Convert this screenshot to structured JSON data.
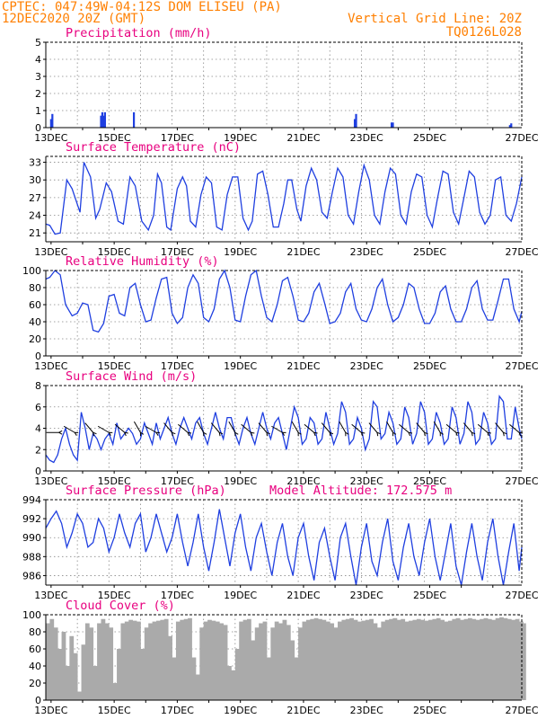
{
  "header": {
    "line1_left": "CPTEC:  047:49W-04:12S  DOM ELISEU (PA)",
    "line2_left": "12DEC2020 20Z (GMT)",
    "line1_right": "Vertical Grid Line: 20Z",
    "line2_right": "TQ0126L028"
  },
  "colors": {
    "header": "#ff7f00",
    "title": "#e8007f",
    "series": "#1f3fe0",
    "cloud": "#aaaaaa",
    "grid": "#888888"
  },
  "x_labels": [
    "13DEC",
    "15DEC",
    "17DEC",
    "19DEC",
    "21DEC",
    "23DEC",
    "25DEC",
    "27DEC"
  ],
  "chart_data": [
    {
      "type": "bar",
      "title": "Precipitation (mm/h)",
      "ylim": [
        0,
        5
      ],
      "yticks": [
        0,
        1,
        2,
        3,
        4,
        5
      ],
      "grid": true,
      "x_unit": "hours since 12DEC2020 20Z",
      "x": [
        4,
        5,
        42,
        43,
        44,
        45,
        67,
        235,
        236,
        263,
        264,
        353,
        354
      ],
      "values": [
        0.5,
        0.8,
        0.7,
        0.9,
        0.7,
        0.9,
        0.9,
        0.5,
        0.8,
        0.3,
        0.3,
        0.15,
        0.25
      ]
    },
    {
      "type": "line",
      "title": "Surface Temperature (nC)",
      "ylim": [
        19.5,
        34
      ],
      "yticks": [
        21,
        24,
        27,
        30,
        33
      ],
      "grid": true,
      "x_unit": "hours since 12DEC2020 20Z",
      "x": [
        0,
        3,
        7,
        11,
        16,
        20,
        26,
        29,
        34,
        38,
        41,
        46,
        50,
        55,
        59,
        64,
        68,
        73,
        78,
        82,
        85,
        88,
        92,
        95,
        100,
        104,
        107,
        110,
        114,
        118,
        122,
        126,
        130,
        134,
        138,
        142,
        146,
        150,
        154,
        157,
        161,
        165,
        169,
        173,
        177,
        181,
        184,
        187,
        191,
        194,
        198,
        202,
        206,
        210,
        214,
        218,
        222,
        226,
        230,
        234,
        238,
        242,
        246,
        250,
        254,
        258,
        262,
        266,
        270,
        274,
        278,
        282,
        286,
        290,
        294,
        298,
        302,
        306,
        310,
        314,
        318,
        322,
        326,
        330,
        334,
        338,
        342,
        346,
        350,
        354,
        358,
        362
      ],
      "values": [
        22.5,
        22.3,
        20.8,
        21.0,
        30.0,
        28.5,
        24.5,
        33.0,
        30.5,
        23.5,
        25.0,
        29.5,
        28.0,
        23.0,
        22.5,
        30.5,
        29.0,
        23.0,
        21.5,
        24.0,
        31.0,
        29.5,
        22.0,
        21.5,
        28.5,
        30.5,
        29.0,
        23.0,
        22.0,
        27.5,
        30.5,
        29.5,
        22.0,
        21.5,
        27.5,
        30.5,
        30.5,
        23.5,
        21.5,
        23.0,
        31.0,
        31.5,
        27.5,
        22.0,
        22.0,
        26.0,
        30.0,
        30.0,
        25.0,
        23.0,
        29.0,
        32.0,
        30.0,
        24.5,
        23.5,
        28.0,
        32.0,
        30.5,
        24.0,
        22.5,
        28.0,
        32.5,
        30.0,
        24.0,
        22.5,
        28.0,
        32.0,
        31.0,
        24.0,
        22.5,
        28.0,
        31.0,
        30.5,
        24.0,
        22.0,
        27.0,
        31.5,
        31.0,
        24.5,
        22.5,
        27.0,
        31.5,
        30.5,
        24.5,
        22.5,
        24.0,
        30.0,
        30.5,
        24.0,
        23.0,
        26.0,
        30.5
      ]
    },
    {
      "type": "line",
      "title": "Relative Humidity (%)",
      "ylim": [
        0,
        100
      ],
      "yticks": [
        0,
        20,
        40,
        60,
        80,
        100
      ],
      "grid": true,
      "x_unit": "hours since 12DEC2020 20Z",
      "x": [
        0,
        3,
        7,
        11,
        15,
        20,
        24,
        28,
        32,
        36,
        40,
        44,
        48,
        52,
        56,
        60,
        64,
        68,
        72,
        76,
        80,
        84,
        88,
        92,
        96,
        100,
        104,
        108,
        112,
        116,
        120,
        124,
        128,
        132,
        136,
        140,
        144,
        148,
        152,
        156,
        160,
        164,
        168,
        172,
        176,
        180,
        184,
        188,
        192,
        196,
        200,
        204,
        208,
        212,
        216,
        220,
        224,
        228,
        232,
        236,
        240,
        244,
        248,
        252,
        256,
        260,
        264,
        268,
        272,
        276,
        280,
        284,
        288,
        292,
        296,
        300,
        304,
        308,
        312,
        316,
        320,
        324,
        328,
        332,
        336,
        340,
        344,
        348,
        352,
        356,
        360,
        362
      ],
      "values": [
        90,
        92,
        100,
        95,
        60,
        47,
        50,
        62,
        60,
        30,
        28,
        38,
        70,
        72,
        50,
        47,
        80,
        85,
        60,
        40,
        42,
        68,
        90,
        92,
        50,
        38,
        45,
        80,
        95,
        85,
        45,
        40,
        55,
        90,
        100,
        80,
        42,
        40,
        70,
        95,
        100,
        70,
        45,
        40,
        60,
        88,
        92,
        70,
        42,
        40,
        50,
        75,
        85,
        62,
        38,
        40,
        50,
        75,
        85,
        55,
        42,
        40,
        55,
        80,
        90,
        60,
        40,
        45,
        60,
        85,
        80,
        55,
        38,
        38,
        50,
        75,
        82,
        55,
        40,
        40,
        55,
        80,
        88,
        55,
        42,
        42,
        65,
        90,
        90,
        55,
        40,
        52
      ]
    },
    {
      "type": "line",
      "title": "Surface Wind (m/s)",
      "ylim": [
        0,
        8
      ],
      "yticks": [
        0,
        2,
        4,
        6,
        8
      ],
      "grid": true,
      "x_unit": "hours since 12DEC2020 20Z",
      "x": [
        0,
        3,
        6,
        9,
        12,
        15,
        18,
        21,
        24,
        27,
        30,
        33,
        36,
        39,
        42,
        45,
        48,
        51,
        54,
        57,
        60,
        63,
        66,
        69,
        72,
        75,
        78,
        81,
        84,
        87,
        90,
        93,
        96,
        99,
        102,
        105,
        108,
        111,
        114,
        117,
        120,
        123,
        126,
        129,
        132,
        135,
        138,
        141,
        144,
        147,
        150,
        153,
        156,
        159,
        162,
        165,
        168,
        171,
        174,
        177,
        180,
        183,
        186,
        189,
        192,
        195,
        198,
        201,
        204,
        207,
        210,
        213,
        216,
        219,
        222,
        225,
        228,
        231,
        234,
        237,
        240,
        243,
        246,
        249,
        252,
        255,
        258,
        261,
        264,
        267,
        270,
        273,
        276,
        279,
        282,
        285,
        288,
        291,
        294,
        297,
        300,
        303,
        306,
        309,
        312,
        315,
        318,
        321,
        324,
        327,
        330,
        333,
        336,
        339,
        342,
        345,
        348,
        351,
        354,
        357,
        360,
        362
      ],
      "values": [
        1.5,
        1.0,
        0.8,
        1.5,
        3.0,
        4.0,
        2.5,
        1.5,
        1.0,
        5.5,
        4.0,
        2.0,
        3.5,
        3.0,
        2.0,
        3.0,
        3.5,
        2.5,
        4.5,
        3.0,
        3.5,
        4.0,
        3.5,
        2.5,
        3.0,
        4.5,
        3.5,
        2.5,
        4.5,
        3.0,
        4.0,
        5.0,
        3.5,
        2.5,
        4.0,
        5.0,
        4.0,
        3.0,
        4.5,
        5.0,
        3.5,
        2.5,
        4.0,
        5.5,
        4.0,
        3.0,
        5.0,
        5.0,
        3.5,
        2.5,
        4.0,
        5.0,
        3.5,
        2.5,
        4.0,
        5.5,
        4.0,
        3.0,
        4.5,
        5.0,
        3.5,
        2.0,
        4.0,
        6.0,
        5.0,
        2.5,
        3.0,
        5.0,
        4.5,
        2.5,
        3.0,
        5.5,
        4.0,
        2.5,
        3.5,
        6.5,
        5.5,
        2.5,
        3.0,
        5.0,
        4.0,
        2.0,
        3.0,
        6.5,
        6.0,
        3.0,
        3.5,
        5.5,
        4.5,
        2.5,
        3.0,
        6.0,
        5.0,
        2.5,
        3.5,
        6.5,
        5.5,
        2.5,
        3.0,
        5.5,
        4.5,
        2.5,
        3.0,
        6.0,
        5.0,
        2.5,
        3.5,
        6.5,
        5.5,
        2.5,
        3.0,
        5.5,
        4.5,
        2.5,
        3.0,
        7.0,
        6.5,
        3.0,
        3.0,
        6.0,
        4.0,
        3.0
      ],
      "barbs": [
        {
          "x": 10,
          "dir": 270
        },
        {
          "x": 22,
          "dir": 300
        },
        {
          "x": 36,
          "dir": 320
        },
        {
          "x": 48,
          "dir": 300
        },
        {
          "x": 60,
          "dir": 310
        },
        {
          "x": 72,
          "dir": 330
        },
        {
          "x": 84,
          "dir": 300
        },
        {
          "x": 96,
          "dir": 320
        },
        {
          "x": 108,
          "dir": 310
        },
        {
          "x": 120,
          "dir": 330
        },
        {
          "x": 132,
          "dir": 320
        },
        {
          "x": 144,
          "dir": 330
        },
        {
          "x": 156,
          "dir": 310
        },
        {
          "x": 168,
          "dir": 320
        },
        {
          "x": 180,
          "dir": 300
        },
        {
          "x": 192,
          "dir": 330
        },
        {
          "x": 204,
          "dir": 310
        },
        {
          "x": 216,
          "dir": 320
        },
        {
          "x": 228,
          "dir": 330
        },
        {
          "x": 240,
          "dir": 310
        },
        {
          "x": 252,
          "dir": 320
        },
        {
          "x": 264,
          "dir": 330
        },
        {
          "x": 276,
          "dir": 310
        },
        {
          "x": 288,
          "dir": 320
        },
        {
          "x": 300,
          "dir": 330
        },
        {
          "x": 312,
          "dir": 310
        },
        {
          "x": 324,
          "dir": 320
        },
        {
          "x": 336,
          "dir": 310
        },
        {
          "x": 348,
          "dir": 320
        },
        {
          "x": 360,
          "dir": 310
        }
      ]
    },
    {
      "type": "line",
      "title": "Surface Pressure (hPa)",
      "subtitle": "Model Altitude: 172.575 m",
      "ylim": [
        985,
        994
      ],
      "yticks": [
        986,
        988,
        990,
        992,
        994
      ],
      "grid": true,
      "x_unit": "hours since 12DEC2020 20Z",
      "x": [
        0,
        4,
        8,
        12,
        16,
        20,
        24,
        28,
        32,
        36,
        40,
        44,
        48,
        52,
        56,
        60,
        64,
        68,
        72,
        76,
        80,
        84,
        88,
        92,
        96,
        100,
        104,
        108,
        112,
        116,
        120,
        124,
        128,
        132,
        136,
        140,
        144,
        148,
        152,
        156,
        160,
        164,
        168,
        172,
        176,
        180,
        184,
        188,
        192,
        196,
        200,
        204,
        208,
        212,
        216,
        220,
        224,
        228,
        232,
        236,
        240,
        244,
        248,
        252,
        256,
        260,
        264,
        268,
        272,
        276,
        280,
        284,
        288,
        292,
        296,
        300,
        304,
        308,
        312,
        316,
        320,
        324,
        328,
        332,
        336,
        340,
        344,
        348,
        352,
        356,
        360,
        362
      ],
      "values": [
        991.0,
        992.0,
        992.8,
        991.5,
        989.0,
        990.5,
        992.5,
        991.5,
        989.0,
        989.5,
        992.0,
        991.0,
        988.5,
        990.0,
        992.5,
        990.5,
        989.0,
        991.5,
        992.5,
        988.5,
        990.0,
        992.5,
        990.5,
        988.5,
        990.0,
        992.5,
        989.5,
        987.0,
        989.5,
        992.5,
        989.0,
        986.5,
        989.5,
        993.0,
        990.0,
        987.0,
        990.5,
        992.5,
        989.0,
        986.5,
        990.0,
        991.5,
        988.5,
        986.0,
        989.5,
        991.5,
        988.0,
        986.0,
        990.0,
        991.5,
        988.0,
        985.5,
        989.5,
        991.0,
        988.0,
        985.5,
        990.0,
        991.5,
        988.0,
        985.0,
        989.0,
        991.5,
        987.5,
        986.0,
        989.5,
        992.0,
        987.5,
        985.5,
        989.0,
        991.5,
        988.0,
        986.0,
        989.5,
        992.0,
        988.0,
        985.5,
        988.5,
        991.5,
        987.0,
        985.0,
        988.5,
        991.5,
        988.0,
        985.5,
        989.5,
        992.0,
        988.0,
        985.0,
        988.5,
        991.5,
        986.5,
        989.0
      ]
    },
    {
      "type": "bar",
      "title": "Cloud Cover (%)",
      "ylim": [
        0,
        100
      ],
      "yticks": [
        0,
        20,
        40,
        60,
        80,
        100
      ],
      "grid": true,
      "x_unit": "hours since 12DEC2020 20Z",
      "x": [
        0,
        3,
        6,
        9,
        12,
        15,
        18,
        21,
        24,
        27,
        30,
        33,
        36,
        39,
        42,
        45,
        48,
        51,
        54,
        57,
        60,
        63,
        66,
        69,
        72,
        75,
        78,
        81,
        84,
        87,
        90,
        93,
        96,
        99,
        102,
        105,
        108,
        111,
        114,
        117,
        120,
        123,
        126,
        129,
        132,
        135,
        138,
        141,
        144,
        147,
        150,
        153,
        156,
        159,
        162,
        165,
        168,
        171,
        174,
        177,
        180,
        183,
        186,
        189,
        192,
        195,
        198,
        201,
        204,
        207,
        210,
        213,
        216,
        219,
        222,
        225,
        228,
        231,
        234,
        237,
        240,
        243,
        246,
        249,
        252,
        255,
        258,
        261,
        264,
        267,
        270,
        273,
        276,
        279,
        282,
        285,
        288,
        291,
        294,
        297,
        300,
        303,
        306,
        309,
        312,
        315,
        318,
        321,
        324,
        327,
        330,
        333,
        336,
        339,
        342,
        345,
        348,
        351,
        354,
        357,
        360,
        362
      ],
      "values": [
        90,
        95,
        85,
        60,
        80,
        40,
        75,
        55,
        10,
        65,
        90,
        85,
        40,
        90,
        95,
        90,
        85,
        20,
        60,
        90,
        92,
        94,
        93,
        92,
        60,
        85,
        90,
        92,
        93,
        94,
        95,
        75,
        50,
        92,
        94,
        95,
        96,
        50,
        30,
        85,
        92,
        94,
        93,
        92,
        90,
        88,
        40,
        35,
        60,
        92,
        94,
        95,
        70,
        85,
        90,
        92,
        50,
        85,
        92,
        90,
        94,
        88,
        70,
        50,
        85,
        92,
        94,
        95,
        96,
        95,
        94,
        92,
        90,
        85,
        92,
        94,
        95,
        96,
        94,
        92,
        93,
        94,
        95,
        90,
        85,
        92,
        94,
        95,
        96,
        94,
        95,
        92,
        93,
        94,
        95,
        94,
        93,
        94,
        95,
        96,
        94,
        92,
        93,
        95,
        96,
        94,
        95,
        96,
        95,
        94,
        95,
        96,
        95,
        94,
        96,
        97,
        96,
        95,
        94,
        95,
        92,
        90
      ]
    }
  ]
}
